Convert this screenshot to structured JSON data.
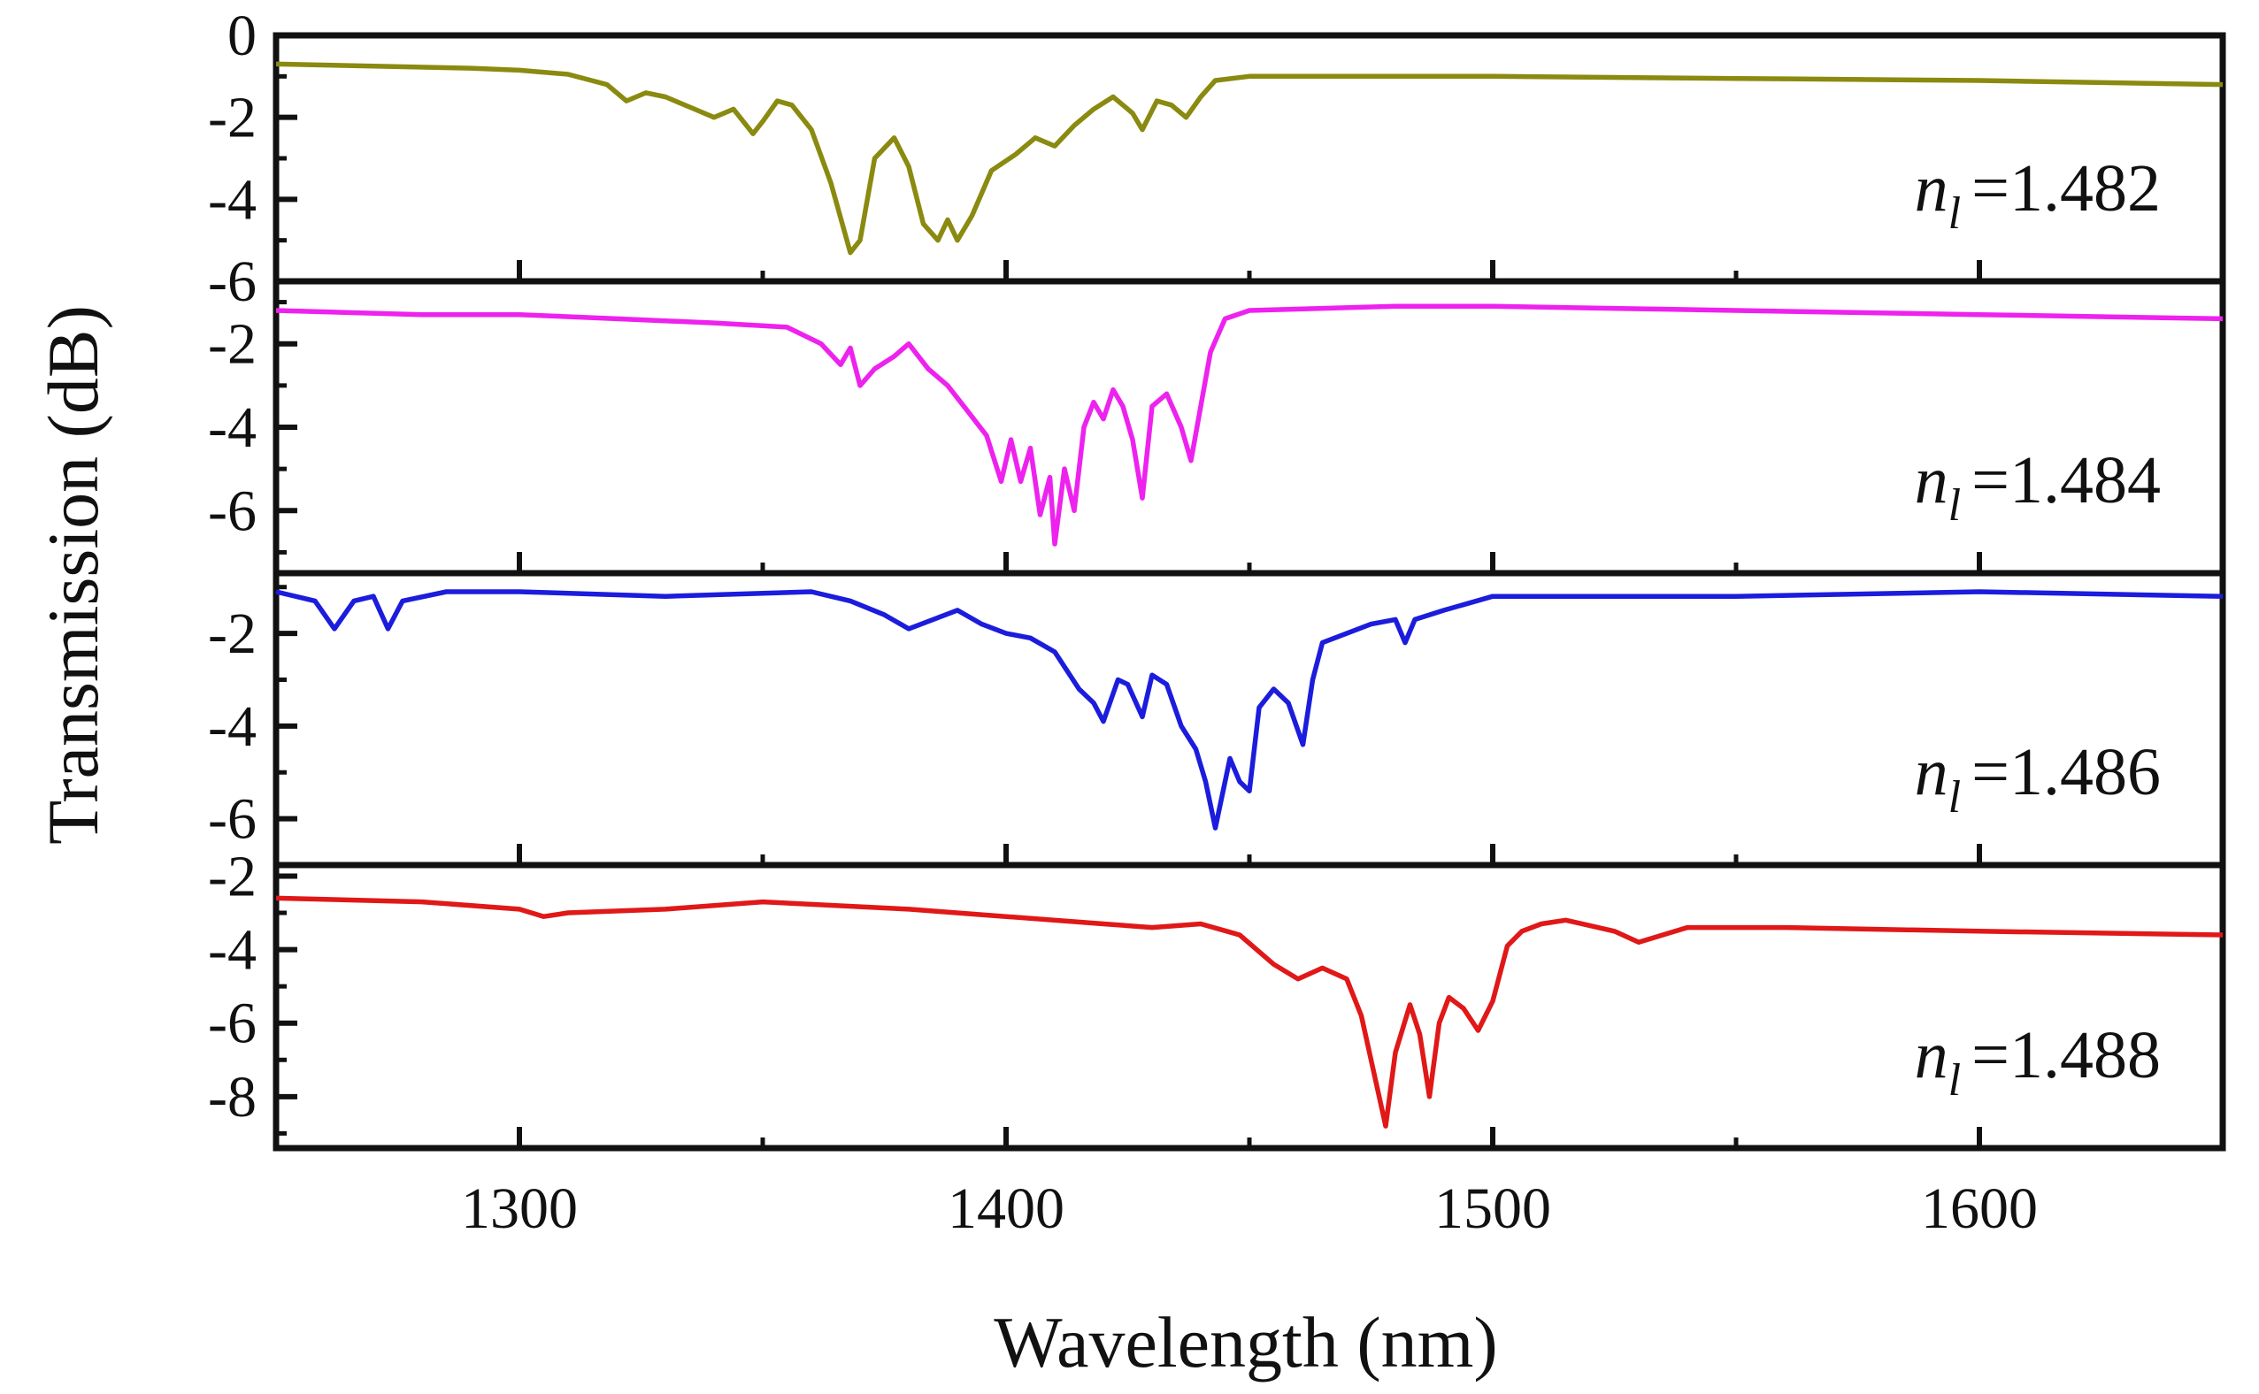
{
  "chart_data": {
    "type": "line",
    "title": "",
    "xlabel": "Wavelength (nm)",
    "ylabel": "Transmission (dB)",
    "xlim": [
      1250,
      1650
    ],
    "xticks": [
      1300,
      1400,
      1500,
      1600
    ],
    "xtick_labels": [
      "1300",
      "1400",
      "1500",
      "1600"
    ],
    "grid": false,
    "panels": [
      {
        "name": "n1-1482",
        "label_symbol": "n",
        "label_subscript": "l",
        "label_value": "=1.482",
        "color": "#8a8a10",
        "ylim": [
          -6,
          0
        ],
        "yticks": [
          0,
          -2,
          -4,
          -6
        ],
        "ytick_labels": [
          "0",
          "-2",
          "-4",
          "-6"
        ],
        "x": [
          1250,
          1270,
          1290,
          1300,
          1310,
          1318,
          1322,
          1326,
          1330,
          1336,
          1340,
          1344,
          1348,
          1350,
          1353,
          1356,
          1360,
          1364,
          1368,
          1370,
          1373,
          1377,
          1380,
          1383,
          1386,
          1388,
          1390,
          1393,
          1397,
          1402,
          1406,
          1410,
          1414,
          1418,
          1422,
          1426,
          1428,
          1431,
          1434,
          1437,
          1440,
          1443,
          1450,
          1470,
          1500,
          1550,
          1600,
          1650
        ],
        "y": [
          -0.7,
          -0.75,
          -0.8,
          -0.85,
          -0.95,
          -1.2,
          -1.6,
          -1.4,
          -1.5,
          -1.8,
          -2.0,
          -1.8,
          -2.4,
          -2.1,
          -1.6,
          -1.7,
          -2.3,
          -3.6,
          -5.3,
          -5.0,
          -3.0,
          -2.5,
          -3.2,
          -4.6,
          -5.0,
          -4.5,
          -5.0,
          -4.4,
          -3.3,
          -2.9,
          -2.5,
          -2.7,
          -2.2,
          -1.8,
          -1.5,
          -1.9,
          -2.3,
          -1.6,
          -1.7,
          -2.0,
          -1.5,
          -1.1,
          -1.0,
          -1.0,
          -1.0,
          -1.05,
          -1.1,
          -1.2
        ]
      },
      {
        "name": "n1-1484",
        "label_symbol": "n",
        "label_subscript": "l",
        "label_value": "=1.484",
        "color": "#ee22ee",
        "ylim": [
          -7.5,
          -0.5
        ],
        "yticks": [
          -2,
          -4,
          -6
        ],
        "ytick_labels": [
          "-2",
          "-4",
          "-6"
        ],
        "x": [
          1250,
          1280,
          1300,
          1320,
          1340,
          1355,
          1362,
          1366,
          1368,
          1370,
          1373,
          1377,
          1380,
          1384,
          1388,
          1392,
          1396,
          1399,
          1401,
          1403,
          1405,
          1407,
          1409,
          1410,
          1412,
          1414,
          1416,
          1418,
          1420,
          1422,
          1424,
          1426,
          1428,
          1430,
          1433,
          1436,
          1438,
          1440,
          1442,
          1445,
          1450,
          1480,
          1500,
          1550,
          1600,
          1650
        ],
        "y": [
          -1.2,
          -1.3,
          -1.3,
          -1.4,
          -1.5,
          -1.6,
          -2.0,
          -2.5,
          -2.1,
          -3.0,
          -2.6,
          -2.3,
          -2.0,
          -2.6,
          -3.0,
          -3.6,
          -4.2,
          -5.3,
          -4.3,
          -5.3,
          -4.5,
          -6.1,
          -5.2,
          -6.8,
          -5.0,
          -6.0,
          -4.0,
          -3.4,
          -3.8,
          -3.1,
          -3.5,
          -4.3,
          -5.7,
          -3.5,
          -3.2,
          -4.0,
          -4.8,
          -3.5,
          -2.2,
          -1.4,
          -1.2,
          -1.1,
          -1.1,
          -1.2,
          -1.3,
          -1.4
        ]
      },
      {
        "name": "n1-1486",
        "label_symbol": "n",
        "label_subscript": "l",
        "label_value": "=1.486",
        "color": "#1c1cdd",
        "ylim": [
          -7,
          -0.7
        ],
        "yticks": [
          -2,
          -4,
          -6
        ],
        "ytick_labels": [
          "-2",
          "-4",
          "-6"
        ],
        "x": [
          1250,
          1258,
          1262,
          1266,
          1270,
          1273,
          1276,
          1285,
          1300,
          1330,
          1360,
          1368,
          1375,
          1380,
          1385,
          1390,
          1395,
          1400,
          1405,
          1410,
          1415,
          1418,
          1420,
          1423,
          1425,
          1428,
          1430,
          1433,
          1436,
          1439,
          1441,
          1443,
          1446,
          1448,
          1450,
          1452,
          1455,
          1458,
          1461,
          1463,
          1465,
          1470,
          1475,
          1480,
          1482,
          1484,
          1490,
          1500,
          1550,
          1600,
          1650
        ],
        "y": [
          -1.1,
          -1.3,
          -1.9,
          -1.3,
          -1.2,
          -1.9,
          -1.3,
          -1.1,
          -1.1,
          -1.2,
          -1.1,
          -1.3,
          -1.6,
          -1.9,
          -1.7,
          -1.5,
          -1.8,
          -2.0,
          -2.1,
          -2.4,
          -3.2,
          -3.5,
          -3.9,
          -3.0,
          -3.1,
          -3.8,
          -2.9,
          -3.1,
          -4.0,
          -4.5,
          -5.2,
          -6.2,
          -4.7,
          -5.2,
          -5.4,
          -3.6,
          -3.2,
          -3.5,
          -4.4,
          -3.0,
          -2.2,
          -2.0,
          -1.8,
          -1.7,
          -2.2,
          -1.7,
          -1.5,
          -1.2,
          -1.2,
          -1.1,
          -1.2
        ]
      },
      {
        "name": "n1-1488",
        "label_symbol": "n",
        "label_subscript": "l",
        "label_value": "=1.488",
        "color": "#e01818",
        "ylim": [
          -9.4,
          -1.7
        ],
        "yticks": [
          -2,
          -4,
          -6,
          -8
        ],
        "ytick_labels": [
          "-2",
          "-4",
          "-6",
          "-8"
        ],
        "x": [
          1250,
          1280,
          1300,
          1305,
          1310,
          1330,
          1350,
          1380,
          1400,
          1420,
          1430,
          1440,
          1448,
          1455,
          1460,
          1465,
          1470,
          1473,
          1476,
          1478,
          1480,
          1483,
          1485,
          1487,
          1489,
          1491,
          1494,
          1497,
          1500,
          1503,
          1506,
          1510,
          1515,
          1525,
          1530,
          1540,
          1560,
          1600,
          1650
        ],
        "y": [
          -2.6,
          -2.7,
          -2.9,
          -3.1,
          -3.0,
          -2.9,
          -2.7,
          -2.9,
          -3.1,
          -3.3,
          -3.4,
          -3.3,
          -3.6,
          -4.4,
          -4.8,
          -4.5,
          -4.8,
          -5.8,
          -7.6,
          -8.8,
          -6.8,
          -5.5,
          -6.3,
          -8.0,
          -6.0,
          -5.3,
          -5.6,
          -6.2,
          -5.4,
          -3.9,
          -3.5,
          -3.3,
          -3.2,
          -3.5,
          -3.8,
          -3.4,
          -3.4,
          -3.5,
          -3.6
        ]
      }
    ]
  }
}
